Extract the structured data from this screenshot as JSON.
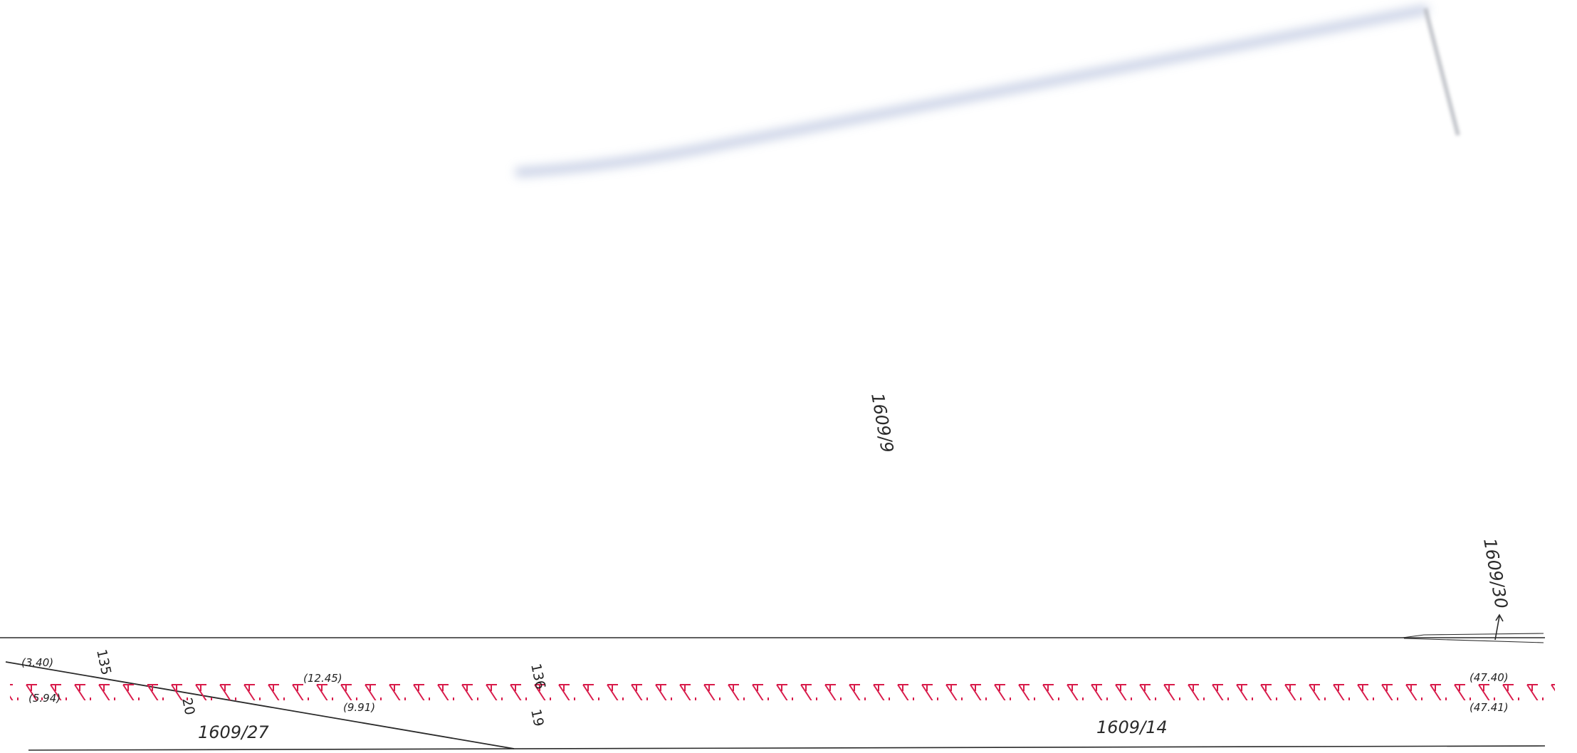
{
  "parcels": {
    "p1609_9": "1609/9",
    "p1609_30": "1609/30",
    "p1609_27": "1609/27",
    "p1609_14": "1609/14"
  },
  "points": {
    "p135": "135",
    "p136": "136",
    "p20": "20",
    "p19": "19"
  },
  "dimensions": {
    "d3_40": "(3.40)",
    "d5_94": "(5.94)",
    "d12_45": "(12.45)",
    "d9_91": "(9.91)",
    "d47_40": "(47.40)",
    "d47_41": "(47.41)"
  },
  "colors": {
    "boundary": "#2a2a2a",
    "easement_hatch": "#d81b4a",
    "road_shadow": "#b8c3dc"
  }
}
